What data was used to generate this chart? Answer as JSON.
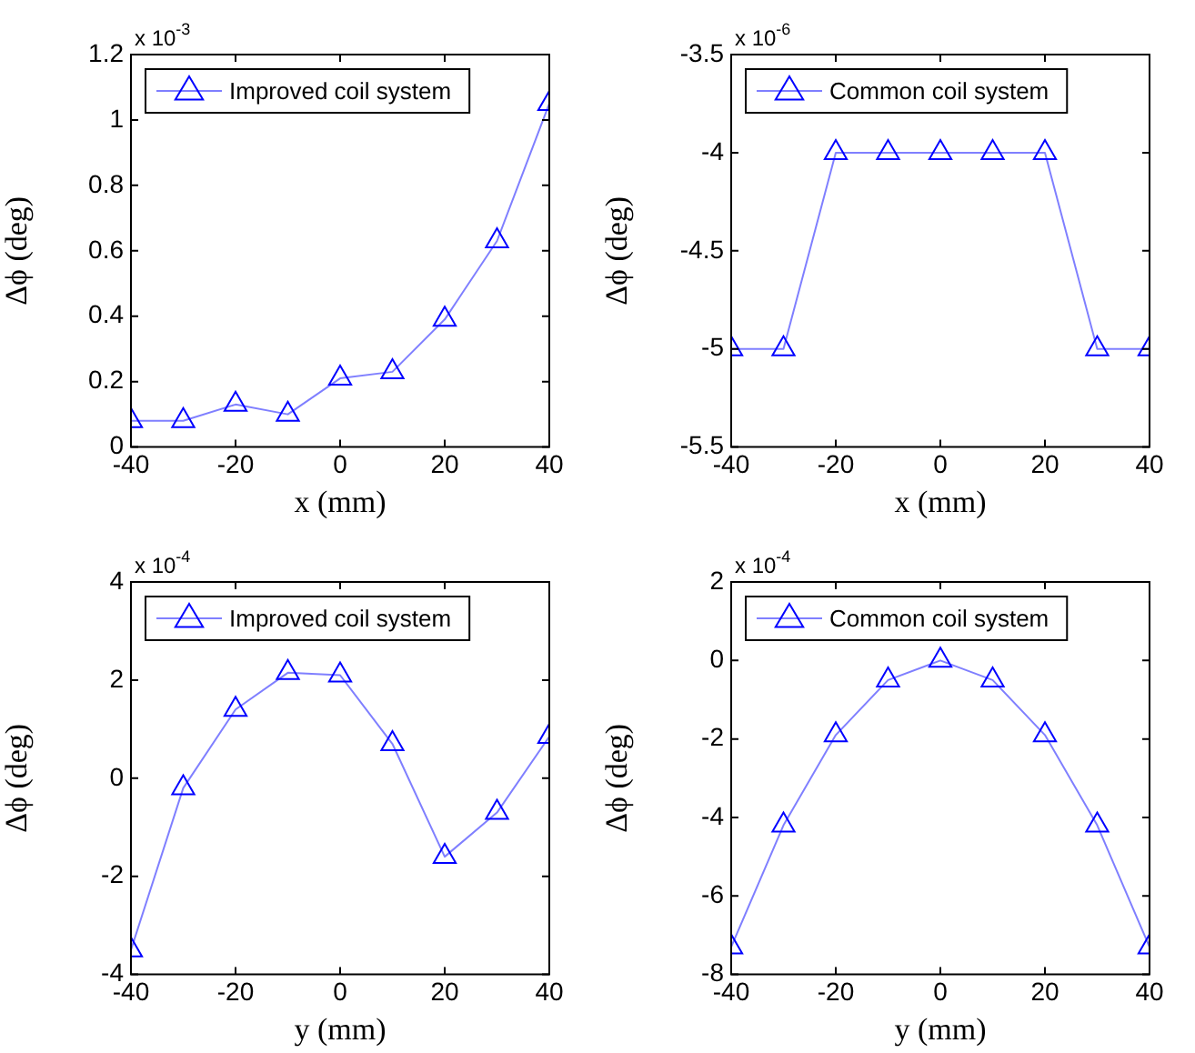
{
  "chart_data": [
    {
      "type": "line",
      "xlabel": "x (mm)",
      "ylabel": "Δϕ (deg)",
      "annotations": [
        "x 10$^{-3}$"
      ],
      "x": [
        -40,
        -30,
        -20,
        -10,
        0,
        10,
        20,
        30,
        40
      ],
      "xlim": [
        -40,
        40
      ],
      "xticks": [
        -40,
        -20,
        0,
        20,
        40
      ],
      "ylim": [
        0,
        1.2
      ],
      "yticks": [
        0,
        0.2,
        0.4,
        0.6,
        0.8,
        1,
        1.2
      ],
      "marker": "triangle",
      "legend": "top left",
      "series": [
        {
          "name": "Improved coil system",
          "color": "#0000ff",
          "values": [
            0.08,
            0.08,
            0.13,
            0.1,
            0.21,
            0.23,
            0.39,
            0.63,
            1.05
          ]
        }
      ]
    },
    {
      "type": "line",
      "xlabel": "x (mm)",
      "ylabel": "Δϕ (deg)",
      "annotations": [
        "x 10$^{-6}$"
      ],
      "x": [
        -40,
        -30,
        -20,
        -10,
        0,
        10,
        20,
        30,
        40
      ],
      "xlim": [
        -40,
        40
      ],
      "xticks": [
        -40,
        -20,
        0,
        20,
        40
      ],
      "ylim": [
        -5.5,
        -3.5
      ],
      "yticks": [
        -5.5,
        -5,
        -4.5,
        -4,
        -3.5
      ],
      "marker": "triangle",
      "legend": "top left",
      "series": [
        {
          "name": "Common coil system",
          "color": "#0000ff",
          "values": [
            -5,
            -5,
            -4,
            -4,
            -4,
            -4,
            -4,
            -5,
            -5
          ]
        }
      ]
    },
    {
      "type": "line",
      "xlabel": "y (mm)",
      "ylabel": "Δϕ (deg)",
      "annotations": [
        "x 10$^{-4}$"
      ],
      "x": [
        -40,
        -30,
        -20,
        -10,
        0,
        10,
        20,
        30,
        40
      ],
      "xlim": [
        -40,
        40
      ],
      "xticks": [
        -40,
        -20,
        0,
        20,
        40
      ],
      "ylim": [
        -4,
        4
      ],
      "yticks": [
        -4,
        -2,
        0,
        2,
        4
      ],
      "marker": "triangle",
      "legend": "top left",
      "series": [
        {
          "name": "Improved coil system",
          "color": "#0000ff",
          "values": [
            -3.5,
            -0.2,
            1.4,
            2.15,
            2.1,
            0.7,
            -1.6,
            -0.7,
            0.85
          ]
        }
      ]
    },
    {
      "type": "line",
      "xlabel": "y (mm)",
      "ylabel": "Δϕ (deg)",
      "annotations": [
        "x 10$^{-4}$"
      ],
      "x": [
        -40,
        -30,
        -20,
        -10,
        0,
        10,
        20,
        30,
        40
      ],
      "xlim": [
        -40,
        40
      ],
      "xticks": [
        -40,
        -20,
        0,
        20,
        40
      ],
      "ylim": [
        -8,
        2
      ],
      "yticks": [
        -8,
        -6,
        -4,
        -2,
        0,
        2
      ],
      "marker": "triangle",
      "legend": "top left",
      "series": [
        {
          "name": "Common coil system",
          "color": "#0000ff",
          "values": [
            -7.3,
            -4.2,
            -1.9,
            -0.5,
            0,
            -0.5,
            -1.9,
            -4.2,
            -7.3
          ]
        }
      ]
    }
  ]
}
